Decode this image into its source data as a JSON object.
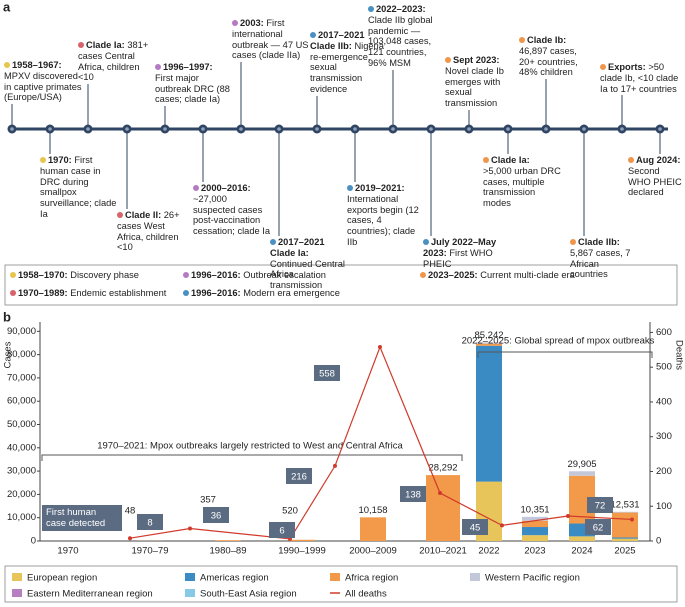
{
  "figure": {
    "panel_a_label": "a",
    "panel_b_label": "b"
  },
  "timeline": {
    "events": [
      {
        "label": "1958–1967:",
        "text": "MPXV discovered in captive primates (Europe/USA)",
        "color": "#e8c54d"
      },
      {
        "label": "1970:",
        "text": "First human case in DRC during smallpox surveillance; clade Ia",
        "color": "#e8c54d"
      },
      {
        "label": "Clade Ia:",
        "text": "381+ cases Central Africa, children <10",
        "color": "#d9636b"
      },
      {
        "label": "Clade II:",
        "text": "26+ cases West Africa, children <10",
        "color": "#d9636b"
      },
      {
        "label": "1996–1997:",
        "text": "First major outbreak DRC (88 cases; clade Ia)",
        "color": "#b57ac4"
      },
      {
        "label": "2000–2016:",
        "text": "~27,000 suspected cases post-vaccination cessation; clade Ia",
        "color": "#b57ac4"
      },
      {
        "label": "2003:",
        "text": "First international outbreak — 47 US cases (clade IIa)",
        "color": "#b57ac4"
      },
      {
        "label": "2017–2021 Clade Ia:",
        "text": "Continued Central Africa transmission",
        "color": "#4a90c2"
      },
      {
        "label": "2017–2021 Clade IIb:",
        "text": "Nigeria re-emergence, sexual transmission evidence",
        "color": "#4a90c2"
      },
      {
        "label": "2019–2021:",
        "text": "International exports begin (12 cases, 4 countries); clade IIb",
        "color": "#4a90c2"
      },
      {
        "label": "2022–2023:",
        "text": "Clade IIb global pandemic — 103,048 cases, 121 countries, 96% MSM",
        "color": "#4a90c2"
      },
      {
        "label": "July 2022–May 2023:",
        "text": "First WHO PHEIC",
        "color": "#4a90c2"
      },
      {
        "label": "Sept 2023:",
        "text": "Novel clade Ib emerges with sexual transmission",
        "color": "#f0964a"
      },
      {
        "label": "Clade Ia:",
        "text": ">5,000 urban DRC cases, multiple transmission modes",
        "color": "#f0964a"
      },
      {
        "label": "Clade Ib:",
        "text": "46,897 cases, 20+ countries, 48% children",
        "color": "#f0964a"
      },
      {
        "label": "Clade IIb:",
        "text": "5,867 cases, 7 African countries",
        "color": "#f0964a"
      },
      {
        "label": "Exports:",
        "text": ">50 clade Ib, <10 clade Ia to 17+ countries",
        "color": "#f0964a"
      },
      {
        "label": "Aug 2024:",
        "text": "Second WHO PHEIC declared",
        "color": "#f0964a"
      }
    ],
    "phases": [
      {
        "label": "1958–1970:",
        "text": "Discovery phase",
        "color": "#e8c54d"
      },
      {
        "label": "1970–1989:",
        "text": "Endemic establishment",
        "color": "#d9636b"
      },
      {
        "label": "1996–2016:",
        "text": "Outbreak escalation",
        "color": "#b57ac4"
      },
      {
        "label": "1996–2016:",
        "text": "Modern era emergence",
        "color": "#4a90c2"
      },
      {
        "label": "2023–2025:",
        "text": "Current multi-clade era",
        "color": "#f0964a"
      }
    ]
  },
  "chart_data": {
    "type": "bar",
    "stacked": true,
    "y_label": "Cases",
    "y2_label": "Deaths",
    "categories": [
      "1970",
      "1970–79",
      "1980–89",
      "1990–1999",
      "2000–2009",
      "2010–2021",
      "2022",
      "2023",
      "2024",
      "2025"
    ],
    "series": [
      {
        "name": "European region",
        "color": "#e8c55a",
        "values": [
          0,
          0,
          0,
          0,
          0,
          0,
          25500,
          2500,
          2000,
          1000
        ]
      },
      {
        "name": "Americas region",
        "color": "#3a8ac4",
        "values": [
          0,
          0,
          0,
          0,
          0,
          0,
          58300,
          3500,
          5500,
          500
        ]
      },
      {
        "name": "Africa region",
        "color": "#f29a4a",
        "values": [
          1,
          48,
          357,
          520,
          10158,
          28292,
          900,
          2700,
          20500,
          10700
        ]
      },
      {
        "name": "Western Pacific region",
        "color": "#c3c7da",
        "values": [
          0,
          0,
          0,
          0,
          0,
          0,
          400,
          1500,
          1800,
          300
        ]
      },
      {
        "name": "Eastern Mediterranean region",
        "color": "#b57fc0",
        "values": [
          0,
          0,
          0,
          0,
          0,
          0,
          80,
          51,
          50,
          20
        ]
      },
      {
        "name": "South-East Asia region",
        "color": "#89c9e8",
        "values": [
          0,
          0,
          0,
          0,
          0,
          0,
          62,
          100,
          55,
          11
        ]
      },
      {
        "name": "All deaths",
        "color": "#d03a2a",
        "type": "line",
        "axis": "y2",
        "values": [
          null,
          8,
          36,
          6,
          216,
          558,
          138,
          45,
          72,
          62
        ]
      }
    ],
    "total_labels": [
      null,
      "48",
      "357",
      "520",
      "10,158",
      "28,292",
      "85,242",
      "10,351",
      "29,905",
      "12,531"
    ],
    "annotations": [
      "1970–2021: Mpox outbreaks largely restricted to West and Central Africa",
      "2022–2025: Global spread of mpox outbreaks",
      "First human case detected"
    ],
    "ylim": [
      0,
      94000
    ],
    "yticks": [
      0,
      {
        "value": 10000,
        "label": "10,000"
      },
      {
        "value": 20000,
        "label": "20,000"
      },
      {
        "value": 30000,
        "label": "30,000"
      },
      {
        "value": 40000,
        "label": "40,000"
      },
      {
        "value": 50000,
        "label": "50,000"
      },
      {
        "value": 60000,
        "label": "60,000"
      },
      {
        "value": 70000,
        "label": "70,000"
      },
      {
        "value": 80000,
        "label": "80,000"
      },
      {
        "value": 90000,
        "label": "90,000"
      }
    ],
    "y2lim": [
      0,
      630
    ],
    "y2ticks": [
      0,
      100,
      200,
      300,
      400,
      500,
      600
    ]
  }
}
